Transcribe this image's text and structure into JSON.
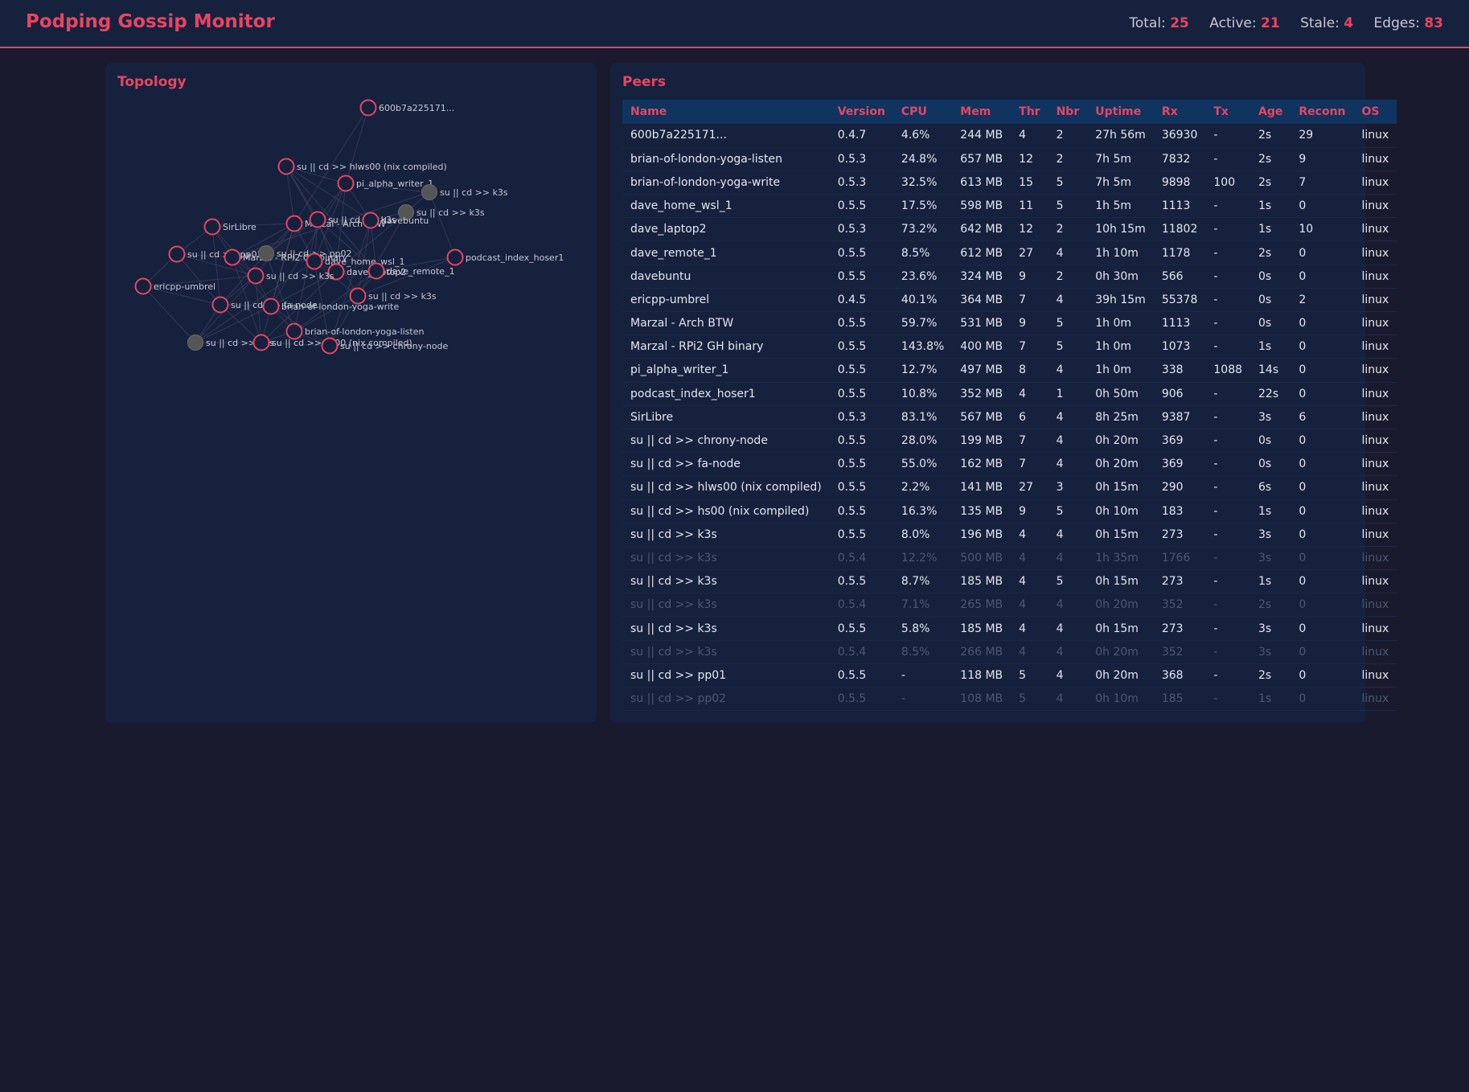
{
  "header": {
    "title": "Podping Gossip Monitor",
    "stats": [
      {
        "label": "Total:",
        "value": "25"
      },
      {
        "label": "Active:",
        "value": "21"
      },
      {
        "label": "Stale:",
        "value": "4"
      },
      {
        "label": "Edges:",
        "value": "83"
      }
    ]
  },
  "colors": {
    "accent": "#e94560",
    "panel": "#16213e",
    "background": "#1a1a2e",
    "table_header": "#0f3460",
    "stale_node": "#555555"
  },
  "topology": {
    "title": "Topology",
    "nodes": [
      {
        "label": "600b7a225171...",
        "active": true
      },
      {
        "label": "su || cd >> hlws00 (nix compiled)",
        "active": true
      },
      {
        "label": "pi_alpha_writer_1",
        "active": true
      },
      {
        "label": "su || cd >> k3s",
        "active": false
      },
      {
        "label": "su || cd >> k3s",
        "active": false
      },
      {
        "label": "SirLibre",
        "active": true
      },
      {
        "label": "Marzal - Arch BTW",
        "active": true
      },
      {
        "label": "su || cd >> k3s",
        "active": true
      },
      {
        "label": "davebuntu",
        "active": true
      },
      {
        "label": "podcast_index_hoser1",
        "active": true
      },
      {
        "label": "su || cd >> pp01",
        "active": true
      },
      {
        "label": "Marzal - RPi2 GH binary",
        "active": true
      },
      {
        "label": "su || cd >> pp02",
        "active": false
      },
      {
        "label": "dave_home_wsl_1",
        "active": true
      },
      {
        "label": "dave_laptop2",
        "active": true
      },
      {
        "label": "dave_remote_1",
        "active": true
      },
      {
        "label": "su || cd >> k3s",
        "active": true
      },
      {
        "label": "ericpp-umbrel",
        "active": true
      },
      {
        "label": "su || cd >> k3s",
        "active": true
      },
      {
        "label": "su || cd >> fa-node",
        "active": true
      },
      {
        "label": "brian-of-london-yoga-write",
        "active": true
      },
      {
        "label": "brian-of-london-yoga-listen",
        "active": true
      },
      {
        "label": "su || cd >> k3s",
        "active": false
      },
      {
        "label": "su || cd >> hs00 (nix compiled)",
        "active": true
      },
      {
        "label": "su || cd >> chrony-node",
        "active": true
      }
    ]
  },
  "peers": {
    "title": "Peers",
    "columns": [
      "Name",
      "Version",
      "CPU",
      "Mem",
      "Thr",
      "Nbr",
      "Uptime",
      "Rx",
      "Tx",
      "Age",
      "Reconn",
      "OS"
    ],
    "rows": [
      {
        "stale": false,
        "cells": [
          "600b7a225171...",
          "0.4.7",
          "4.6%",
          "244 MB",
          "4",
          "2",
          "27h 56m",
          "36930",
          "-",
          "2s",
          "29",
          "linux"
        ]
      },
      {
        "stale": false,
        "cells": [
          "brian-of-london-yoga-listen",
          "0.5.3",
          "24.8%",
          "657 MB",
          "12",
          "2",
          "7h 5m",
          "7832",
          "-",
          "2s",
          "9",
          "linux"
        ]
      },
      {
        "stale": false,
        "cells": [
          "brian-of-london-yoga-write",
          "0.5.3",
          "32.5%",
          "613 MB",
          "15",
          "5",
          "7h 5m",
          "9898",
          "100",
          "2s",
          "7",
          "linux"
        ]
      },
      {
        "stale": false,
        "cells": [
          "dave_home_wsl_1",
          "0.5.5",
          "17.5%",
          "598 MB",
          "11",
          "5",
          "1h 5m",
          "1113",
          "-",
          "1s",
          "0",
          "linux"
        ]
      },
      {
        "stale": false,
        "cells": [
          "dave_laptop2",
          "0.5.3",
          "73.2%",
          "642 MB",
          "12",
          "2",
          "10h 15m",
          "11802",
          "-",
          "1s",
          "10",
          "linux"
        ]
      },
      {
        "stale": false,
        "cells": [
          "dave_remote_1",
          "0.5.5",
          "8.5%",
          "612 MB",
          "27",
          "4",
          "1h 10m",
          "1178",
          "-",
          "2s",
          "0",
          "linux"
        ]
      },
      {
        "stale": false,
        "cells": [
          "davebuntu",
          "0.5.5",
          "23.6%",
          "324 MB",
          "9",
          "2",
          "0h 30m",
          "566",
          "-",
          "0s",
          "0",
          "linux"
        ]
      },
      {
        "stale": false,
        "cells": [
          "ericpp-umbrel",
          "0.4.5",
          "40.1%",
          "364 MB",
          "7",
          "4",
          "39h 15m",
          "55378",
          "-",
          "0s",
          "2",
          "linux"
        ]
      },
      {
        "stale": false,
        "cells": [
          "Marzal - Arch BTW",
          "0.5.5",
          "59.7%",
          "531 MB",
          "9",
          "5",
          "1h 0m",
          "1113",
          "-",
          "0s",
          "0",
          "linux"
        ]
      },
      {
        "stale": false,
        "cells": [
          "Marzal - RPi2 GH binary",
          "0.5.5",
          "143.8%",
          "400 MB",
          "7",
          "5",
          "1h 0m",
          "1073",
          "-",
          "1s",
          "0",
          "linux"
        ]
      },
      {
        "stale": false,
        "cells": [
          "pi_alpha_writer_1",
          "0.5.5",
          "12.7%",
          "497 MB",
          "8",
          "4",
          "1h 0m",
          "338",
          "1088",
          "14s",
          "0",
          "linux"
        ]
      },
      {
        "stale": false,
        "cells": [
          "podcast_index_hoser1",
          "0.5.5",
          "10.8%",
          "352 MB",
          "4",
          "1",
          "0h 50m",
          "906",
          "-",
          "22s",
          "0",
          "linux"
        ]
      },
      {
        "stale": false,
        "cells": [
          "SirLibre",
          "0.5.3",
          "83.1%",
          "567 MB",
          "6",
          "4",
          "8h 25m",
          "9387",
          "-",
          "3s",
          "6",
          "linux"
        ]
      },
      {
        "stale": false,
        "cells": [
          "su || cd >> chrony-node",
          "0.5.5",
          "28.0%",
          "199 MB",
          "7",
          "4",
          "0h 20m",
          "369",
          "-",
          "0s",
          "0",
          "linux"
        ]
      },
      {
        "stale": false,
        "cells": [
          "su || cd >> fa-node",
          "0.5.5",
          "55.0%",
          "162 MB",
          "7",
          "4",
          "0h 20m",
          "369",
          "-",
          "0s",
          "0",
          "linux"
        ]
      },
      {
        "stale": false,
        "cells": [
          "su || cd >> hlws00 (nix compiled)",
          "0.5.5",
          "2.2%",
          "141 MB",
          "27",
          "3",
          "0h 15m",
          "290",
          "-",
          "6s",
          "0",
          "linux"
        ]
      },
      {
        "stale": false,
        "cells": [
          "su || cd >> hs00 (nix compiled)",
          "0.5.5",
          "16.3%",
          "135 MB",
          "9",
          "5",
          "0h 10m",
          "183",
          "-",
          "1s",
          "0",
          "linux"
        ]
      },
      {
        "stale": false,
        "cells": [
          "su || cd >> k3s",
          "0.5.5",
          "8.0%",
          "196 MB",
          "4",
          "4",
          "0h 15m",
          "273",
          "-",
          "3s",
          "0",
          "linux"
        ]
      },
      {
        "stale": true,
        "cells": [
          "su || cd >> k3s",
          "0.5.4",
          "12.2%",
          "500 MB",
          "4",
          "4",
          "1h 35m",
          "1766",
          "-",
          "3s",
          "0",
          "linux"
        ]
      },
      {
        "stale": false,
        "cells": [
          "su || cd >> k3s",
          "0.5.5",
          "8.7%",
          "185 MB",
          "4",
          "5",
          "0h 15m",
          "273",
          "-",
          "1s",
          "0",
          "linux"
        ]
      },
      {
        "stale": true,
        "cells": [
          "su || cd >> k3s",
          "0.5.4",
          "7.1%",
          "265 MB",
          "4",
          "4",
          "0h 20m",
          "352",
          "-",
          "2s",
          "0",
          "linux"
        ]
      },
      {
        "stale": false,
        "cells": [
          "su || cd >> k3s",
          "0.5.5",
          "5.8%",
          "185 MB",
          "4",
          "4",
          "0h 15m",
          "273",
          "-",
          "3s",
          "0",
          "linux"
        ]
      },
      {
        "stale": true,
        "cells": [
          "su || cd >> k3s",
          "0.5.4",
          "8.5%",
          "266 MB",
          "4",
          "4",
          "0h 20m",
          "352",
          "-",
          "3s",
          "0",
          "linux"
        ]
      },
      {
        "stale": false,
        "cells": [
          "su || cd >> pp01",
          "0.5.5",
          "-",
          "118 MB",
          "5",
          "4",
          "0h 20m",
          "368",
          "-",
          "2s",
          "0",
          "linux"
        ]
      },
      {
        "stale": true,
        "cells": [
          "su || cd >> pp02",
          "0.5.5",
          "-",
          "108 MB",
          "5",
          "4",
          "0h 10m",
          "185",
          "-",
          "1s",
          "0",
          "linux"
        ]
      }
    ]
  }
}
